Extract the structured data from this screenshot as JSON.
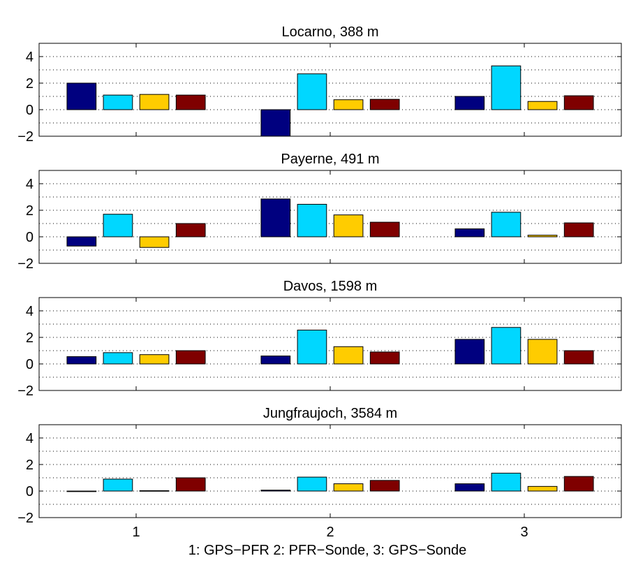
{
  "figure": {
    "xlabel": "1: GPS−PFR  2: PFR−Sonde, 3: GPS−Sonde"
  },
  "chart_data": [
    {
      "type": "bar",
      "title": "Locarno, 388 m",
      "categories": [
        "1",
        "2",
        "3"
      ],
      "ylim": [
        -2,
        5
      ],
      "yticks": [
        "−2",
        "0",
        "2",
        "4"
      ],
      "ytick_values": [
        -2,
        0,
        2,
        4
      ],
      "grid": true,
      "series": [
        {
          "values": [
            2.0,
            -2.0,
            1.0
          ],
          "color": "#00007f"
        },
        {
          "values": [
            1.1,
            2.7,
            3.3
          ],
          "color": "#00d7ff"
        },
        {
          "values": [
            1.15,
            0.75,
            0.62
          ],
          "color": "#ffcc00"
        },
        {
          "values": [
            1.1,
            0.78,
            1.05
          ],
          "color": "#7f0000"
        }
      ]
    },
    {
      "type": "bar",
      "title": "Payerne, 491 m",
      "categories": [
        "1",
        "2",
        "3"
      ],
      "ylim": [
        -2,
        5
      ],
      "yticks": [
        "−2",
        "0",
        "2",
        "4"
      ],
      "ytick_values": [
        -2,
        0,
        2,
        4
      ],
      "grid": true,
      "series": [
        {
          "values": [
            -0.7,
            2.85,
            0.6
          ],
          "color": "#00007f"
        },
        {
          "values": [
            1.7,
            2.45,
            1.85
          ],
          "color": "#00d7ff"
        },
        {
          "values": [
            -0.8,
            1.65,
            0.12
          ],
          "color": "#ffcc00"
        },
        {
          "values": [
            1.0,
            1.1,
            1.05
          ],
          "color": "#7f0000"
        }
      ]
    },
    {
      "type": "bar",
      "title": "Davos, 1598 m",
      "categories": [
        "1",
        "2",
        "3"
      ],
      "ylim": [
        -2,
        5
      ],
      "yticks": [
        "−2",
        "0",
        "2",
        "4"
      ],
      "ytick_values": [
        -2,
        0,
        2,
        4
      ],
      "grid": true,
      "series": [
        {
          "values": [
            0.55,
            0.6,
            1.85
          ],
          "color": "#00007f"
        },
        {
          "values": [
            0.85,
            2.55,
            2.75
          ],
          "color": "#00d7ff"
        },
        {
          "values": [
            0.7,
            1.3,
            1.85
          ],
          "color": "#ffcc00"
        },
        {
          "values": [
            1.0,
            0.9,
            1.0
          ],
          "color": "#7f0000"
        }
      ]
    },
    {
      "type": "bar",
      "title": "Jungfraujoch, 3584 m",
      "categories": [
        "1",
        "2",
        "3"
      ],
      "ylim": [
        -2,
        5
      ],
      "yticks": [
        "−2",
        "0",
        "2",
        "4"
      ],
      "ytick_values": [
        -2,
        0,
        2,
        4
      ],
      "grid": true,
      "series": [
        {
          "values": [
            -0.03,
            0.07,
            0.55
          ],
          "color": "#00007f"
        },
        {
          "values": [
            0.9,
            1.05,
            1.35
          ],
          "color": "#00d7ff"
        },
        {
          "values": [
            0.03,
            0.55,
            0.35
          ],
          "color": "#ffcc00"
        },
        {
          "values": [
            1.0,
            0.8,
            1.1
          ],
          "color": "#7f0000"
        }
      ]
    }
  ]
}
